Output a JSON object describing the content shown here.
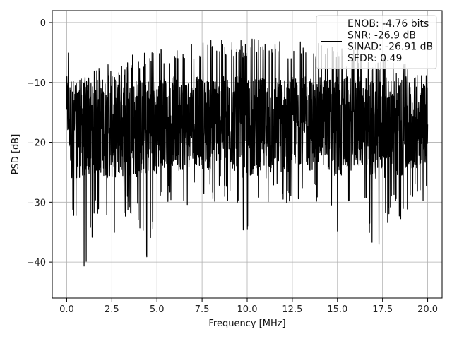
{
  "colors": {
    "background": "#ffffff",
    "trace": "#000000",
    "grid": "#b0b0b0",
    "axes": "#000000",
    "legend_bg": "#ffffff",
    "legend_border": "#cccccc"
  },
  "chart_data": {
    "type": "line",
    "title": "",
    "xlabel": "Frequency [MHz]",
    "ylabel": "PSD [dB]",
    "xlim": [
      -0.8,
      20.8
    ],
    "ylim": [
      -46,
      2
    ],
    "x_ticks": [
      0.0,
      2.5,
      5.0,
      7.5,
      10.0,
      12.5,
      15.0,
      17.5,
      20.0
    ],
    "x_tick_labels": [
      "0.0",
      "2.5",
      "5.0",
      "7.5",
      "10.0",
      "12.5",
      "15.0",
      "17.5",
      "20.0"
    ],
    "y_ticks": [
      0,
      -10,
      -20,
      -30,
      -40
    ],
    "y_tick_labels": [
      "0",
      "−10",
      "−20",
      "−30",
      "−40"
    ],
    "grid": true,
    "legend_placement": "top-right",
    "legend_lines": [
      "ENOB: -4.76 bits",
      "SNR: -26.9 dB",
      "SINAD: -26.91 dB",
      "SFDR: 0.49"
    ],
    "series": [
      {
        "style": "noise-like dense trace, envelope data",
        "x": [
          0.0,
          0.1,
          0.2,
          0.4,
          0.6,
          0.8,
          1.0,
          1.3,
          1.6,
          2.0,
          2.5,
          3.0,
          3.5,
          4.0,
          4.5,
          5.0,
          5.5,
          6.0,
          6.5,
          7.0,
          7.5,
          8.0,
          8.5,
          9.0,
          9.5,
          10.0,
          10.5,
          11.0,
          11.5,
          12.0,
          12.5,
          13.0,
          13.5,
          14.0,
          14.5,
          15.0,
          15.5,
          16.0,
          16.5,
          17.0,
          17.5,
          18.0,
          18.5,
          19.0,
          19.5,
          20.0
        ],
        "upper_envelope": [
          -5.5,
          -3.5,
          -6.5,
          -9.5,
          -10.5,
          -8.5,
          -9.0,
          -8.0,
          -7.5,
          -7.5,
          -6.0,
          -7.0,
          -5.5,
          -5.0,
          -5.0,
          -4.5,
          -4.0,
          -4.0,
          -4.5,
          -3.5,
          -3.5,
          -2.5,
          -2.5,
          -3.0,
          -3.0,
          -3.0,
          -2.5,
          -2.5,
          -2.5,
          -3.0,
          -3.5,
          -3.0,
          -3.0,
          -3.5,
          -3.5,
          -4.0,
          -4.5,
          -4.0,
          -5.0,
          -5.0,
          -5.5,
          -6.0,
          -6.5,
          -6.5,
          -7.0,
          -7.5
        ],
        "lower_envelope": [
          -23.0,
          -28.5,
          -30.0,
          -35.0,
          -32.5,
          -34.5,
          -44.0,
          -38.5,
          -33.0,
          -31.0,
          -37.0,
          -34.5,
          -32.0,
          -33.5,
          -42.5,
          -31.5,
          -30.0,
          -30.5,
          -31.0,
          -29.5,
          -30.5,
          -31.0,
          -29.0,
          -30.5,
          -31.5,
          -37.5,
          -31.0,
          -35.0,
          -30.0,
          -31.5,
          -30.5,
          -29.5,
          -31.0,
          -30.0,
          -30.5,
          -37.5,
          -31.0,
          -30.5,
          -30.0,
          -40.0,
          -37.5,
          -30.5,
          -33.5,
          -31.5,
          -30.0,
          -29.5
        ],
        "typical_band": [
          -22.0,
          -8.0
        ]
      }
    ]
  }
}
